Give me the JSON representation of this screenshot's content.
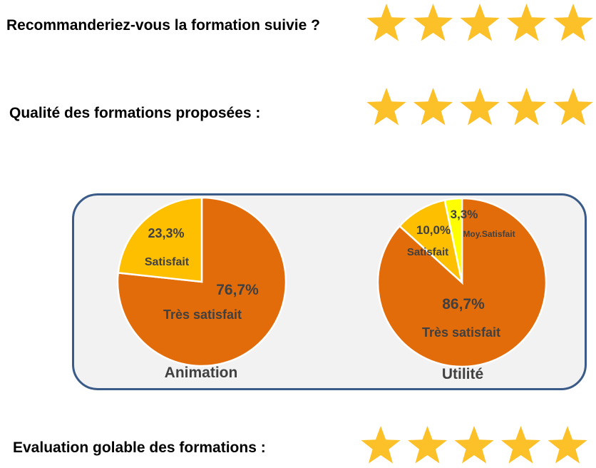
{
  "ratings": [
    {
      "label": "Recommanderiez-vous la formation suivie ?",
      "stars": 5
    },
    {
      "label": "Qualité des formations proposées :",
      "stars": 5
    },
    {
      "label": "Evaluation golable des formations :",
      "stars": 5
    }
  ],
  "colors": {
    "star": "#fcc028",
    "tres_satisfait": "#e36c0a",
    "satisfait": "#fdbf00",
    "moy_satisfait": "#ffff00",
    "panel_border": "#3a5a88",
    "panel_bg": "#f2f2f2",
    "text": "#404040"
  },
  "chart_data": [
    {
      "type": "pie",
      "title": "Animation",
      "slices": [
        {
          "name": "Très satisfait",
          "value": 76.7,
          "label": "76,7%"
        },
        {
          "name": "Satisfait",
          "value": 23.3,
          "label": "23,3%"
        }
      ]
    },
    {
      "type": "pie",
      "title": "Utilité",
      "slices": [
        {
          "name": "Très satisfait",
          "value": 86.7,
          "label": "86,7%"
        },
        {
          "name": "Satisfait",
          "value": 10.0,
          "label": "10,0%"
        },
        {
          "name": "Moy.Satisfait",
          "value": 3.3,
          "label": "3,3%"
        }
      ]
    }
  ]
}
